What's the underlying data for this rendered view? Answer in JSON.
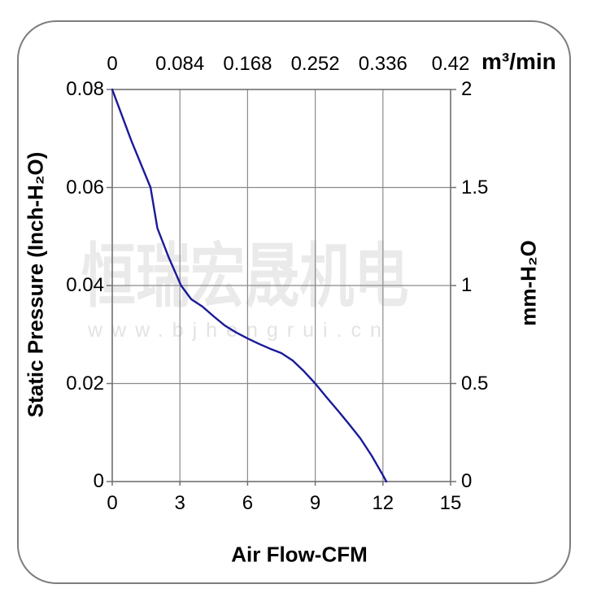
{
  "panel": {
    "background": "#ffffff",
    "border_color": "#7d7d7d"
  },
  "watermark": {
    "company": "恒瑞宏晟机电",
    "website": "www.bjhengrui.cn",
    "color": "#eaeaea"
  },
  "chart_data": {
    "type": "line",
    "grid": true,
    "legend": "none",
    "series": [
      {
        "name": "static-pressure-vs-airflow-curve",
        "x": [
          0,
          0.85,
          1.7,
          2.0,
          2.5,
          3.05,
          3.5,
          4.0,
          4.5,
          5.0,
          5.5,
          6.0,
          6.5,
          7.0,
          7.5,
          8.0,
          8.5,
          9.0,
          9.5,
          10.0,
          10.5,
          11.0,
          11.5,
          12.0,
          12.15
        ],
        "y": [
          0.08,
          0.0695,
          0.06,
          0.0517,
          0.0458,
          0.04,
          0.0372,
          0.0357,
          0.0337,
          0.0318,
          0.0304,
          0.0292,
          0.0281,
          0.0271,
          0.0262,
          0.0247,
          0.0225,
          0.02,
          0.0172,
          0.0145,
          0.0117,
          0.0088,
          0.0053,
          0.0013,
          0
        ]
      }
    ],
    "axes": {
      "bottom": {
        "label": "Air Flow-CFM",
        "ticks": [
          "0",
          "3",
          "6",
          "9",
          "12",
          "15"
        ],
        "range": [
          0,
          15
        ]
      },
      "top": {
        "unit": "m³/min",
        "ticks": [
          "0",
          "0.084",
          "0.168",
          "0.252",
          "0.336",
          "0.42"
        ],
        "range": [
          0,
          0.42
        ]
      },
      "left": {
        "label": "Static Pressure (Inch-H₂O)",
        "ticks": [
          "0.08",
          "0.06",
          "0.04",
          "0.02",
          "0"
        ],
        "range": [
          0,
          0.08
        ]
      },
      "right": {
        "label": "mm-H₂O",
        "ticks": [
          "2",
          "1.5",
          "1",
          "0.5",
          "0"
        ],
        "range": [
          0,
          2
        ]
      }
    },
    "colors": {
      "curve": "#1a1a99",
      "grid": "#8a8a8a",
      "frame": "#707070",
      "text": "#000000"
    }
  }
}
